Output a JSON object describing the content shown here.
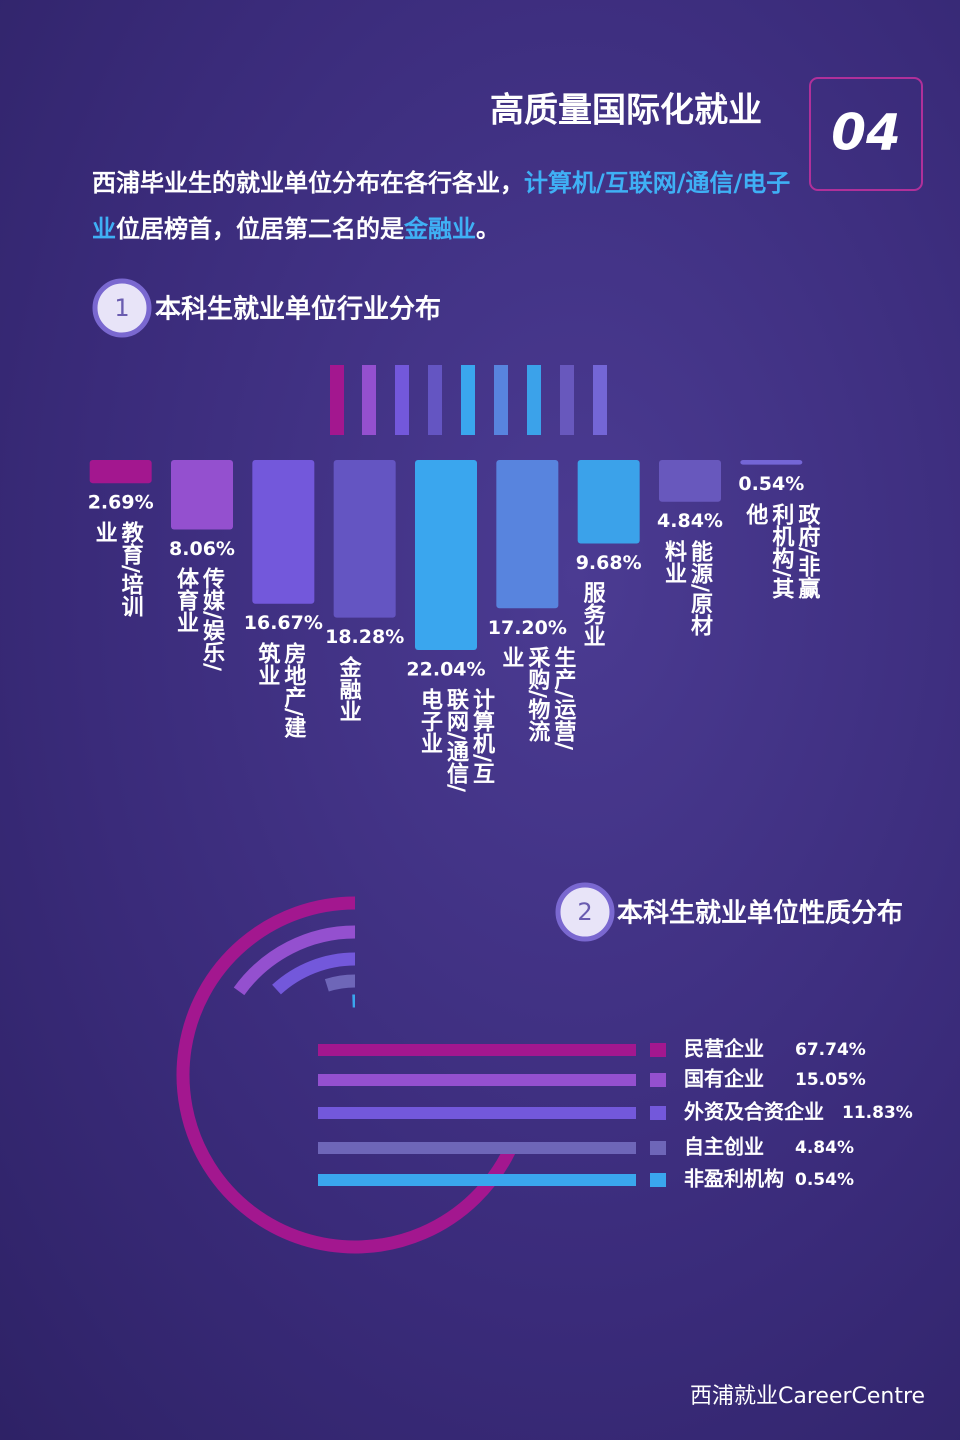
{
  "header": {
    "title": "高质量国际化就业",
    "badge": "04",
    "intro": [
      "西浦毕业生的就业单位分布在各行各业，",
      "计算机/互联网/通信/电子业",
      "位居榜首，位居第二名的是",
      "金融业",
      "。"
    ]
  },
  "sections": [
    {
      "number": "1",
      "title": "本科生就业单位行业分布"
    },
    {
      "number": "2",
      "title": "本科生就业单位性质分布"
    }
  ],
  "chart_data": [
    {
      "type": "bar",
      "categories": [
        "教育/培训业",
        "传媒/娱乐/体育业",
        "房地产/建筑业",
        "金融业",
        "计算机/互联网/通信/电子业",
        "生产/运营/采购/物流业",
        "服务业",
        "能源/原材料业",
        "政府/非赢利机构/其他"
      ],
      "values": [
        2.69,
        8.06,
        16.67,
        18.28,
        22.04,
        17.2,
        9.68,
        4.84,
        0.54
      ],
      "value_labels": [
        "2.69%",
        "8.06%",
        "16.67%",
        "18.28%",
        "22.04%",
        "17.20%",
        "9.68%",
        "4.84%",
        "0.54%"
      ],
      "colors": [
        "#a3178f",
        "#9450cf",
        "#7358db",
        "#6455c2",
        "#3aa6ee",
        "#5884de",
        "#3ba2ea",
        "#6858bd",
        "#7466d6"
      ]
    },
    {
      "type": "radial_bar",
      "categories": [
        "民营企业",
        "国有企业",
        "外资及合资企业",
        "自主创业",
        "非盈利机构"
      ],
      "values": [
        67.74,
        15.05,
        11.83,
        4.84,
        0.54
      ],
      "value_labels": [
        "67.74%",
        "15.05%",
        "11.83%",
        "4.84%",
        "0.54%"
      ],
      "colors": [
        "#a3178f",
        "#9450cf",
        "#7358db",
        "#6e66b8",
        "#3aa6ee"
      ],
      "xlim": [
        0,
        100
      ]
    }
  ],
  "footer": {
    "text": "西浦就业CareerCentre"
  }
}
